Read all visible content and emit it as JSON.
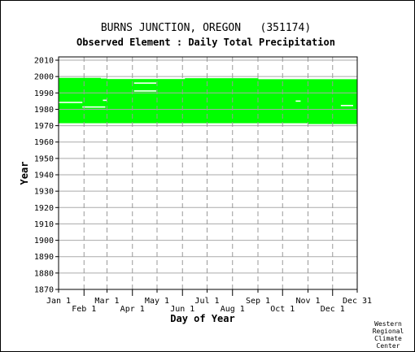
{
  "chart_data": {
    "type": "heatmap",
    "title": "BURNS JUNCTION, OREGON   (351174)",
    "subtitle": "Observed Element : Daily Total Precipitation",
    "xlabel": "Day of Year",
    "ylabel": "Year",
    "credit": [
      "Western",
      "Regional",
      "Climate",
      "Center"
    ],
    "x_ticks_upper": [
      {
        "label": "Jan 1",
        "day": 1
      },
      {
        "label": "Mar 1",
        "day": 60
      },
      {
        "label": "May 1",
        "day": 121
      },
      {
        "label": "Jul 1",
        "day": 182
      },
      {
        "label": "Sep 1",
        "day": 244
      },
      {
        "label": "Nov 1",
        "day": 305
      },
      {
        "label": "Dec 31",
        "day": 365
      }
    ],
    "x_ticks_lower": [
      {
        "label": "Feb 1",
        "day": 32
      },
      {
        "label": "Apr 1",
        "day": 91
      },
      {
        "label": "Jun 1",
        "day": 152
      },
      {
        "label": "Aug 1",
        "day": 213
      },
      {
        "label": "Oct 1",
        "day": 274
      },
      {
        "label": "Dec 1",
        "day": 335
      }
    ],
    "xlim": [
      1,
      365
    ],
    "ylim": [
      1870,
      2012
    ],
    "y_ticks": [
      1870,
      1880,
      1890,
      1900,
      1910,
      1920,
      1930,
      1940,
      1950,
      1960,
      1970,
      1980,
      1990,
      2000,
      2010
    ],
    "grid": true,
    "data_color": "#00ff00",
    "coverage": [
      {
        "start_day": 1,
        "end_day": 52,
        "year_start": 1971.5,
        "year_end": 1999.2
      },
      {
        "start_day": 52,
        "end_day": 60,
        "year_start": 1971.5,
        "year_end": 1998.8
      },
      {
        "start_day": 60,
        "end_day": 155,
        "year_start": 1971.5,
        "year_end": 1998.5
      },
      {
        "start_day": 155,
        "end_day": 244,
        "year_start": 1971.5,
        "year_end": 1999.0
      },
      {
        "start_day": 244,
        "end_day": 305,
        "year_start": 1971.5,
        "year_end": 1998.4
      },
      {
        "start_day": 305,
        "end_day": 365,
        "year_start": 1971.0,
        "year_end": 1998.4
      }
    ],
    "gaps": [
      {
        "start_day": 1,
        "end_day": 30,
        "year": 1984.2
      },
      {
        "start_day": 30,
        "end_day": 58,
        "year": 1981.4
      },
      {
        "start_day": 93,
        "end_day": 120,
        "year": 1996.0
      },
      {
        "start_day": 93,
        "end_day": 120,
        "year": 1991.2
      },
      {
        "start_day": 55,
        "end_day": 60,
        "year": 1985.5
      },
      {
        "start_day": 290,
        "end_day": 296,
        "year": 1985.0
      },
      {
        "start_day": 345,
        "end_day": 360,
        "year": 1982.3
      }
    ]
  }
}
